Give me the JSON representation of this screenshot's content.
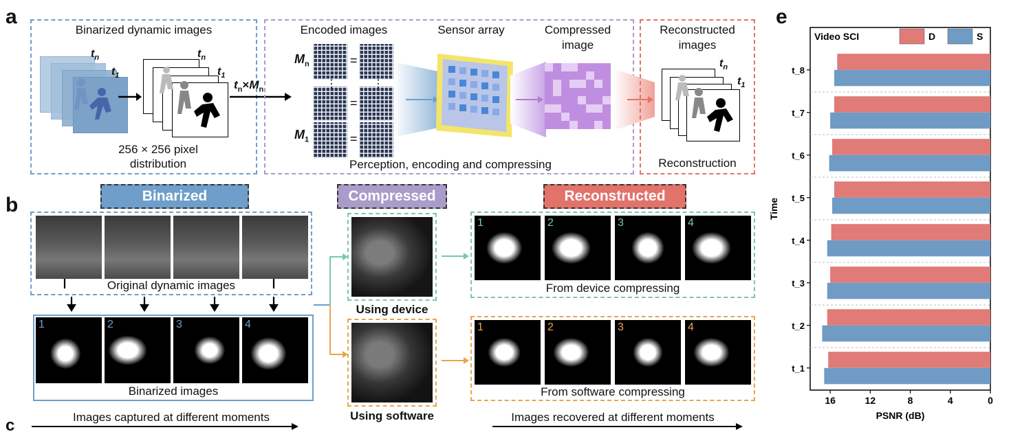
{
  "panel_a": {
    "letter": "a",
    "binarized_title": "Binarized dynamic images",
    "pixel_line1": "256 × 256 pixel",
    "pixel_line2": "distribution",
    "t_n": "t",
    "t_n_sub": "n",
    "t_1": "t",
    "t_1_sub": "1",
    "arrow_label_t": "t",
    "arrow_label_times": "×",
    "arrow_label_M": "M",
    "arrow_label_sub": "n",
    "encoded_title": "Encoded images",
    "sensor_title": "Sensor array",
    "compressed_title_1": "Compressed",
    "compressed_title_2": "image",
    "M_n": "M",
    "M_n_sub": "n",
    "M_1": "M",
    "M_1_sub": "1",
    "equals": "=",
    "vdots": "⋮",
    "perception_caption": "Perception, encoding and compressing",
    "recon_title_1": "Reconstructed",
    "recon_title_2": "images",
    "recon_caption": "Reconstruction"
  },
  "panel_b": {
    "letter": "b",
    "binarized_tag": "Binarized",
    "compressed_tag": "Compressed",
    "reconstructed_tag": "Reconstructed",
    "original_caption": "Original dynamic images",
    "binarized_caption": "Binarized images",
    "using_device": "Using device",
    "using_software": "Using software",
    "device_caption": "From device compressing",
    "software_caption": "From software compressing",
    "captured_caption": "Images captured at different moments",
    "recovered_caption": "Images recovered at different moments",
    "frame_numbers": [
      "1",
      "2",
      "3",
      "4"
    ]
  },
  "panel_c": {
    "letter": "c"
  },
  "colors": {
    "blue": "#6e9ec9",
    "purple": "#a99cc9",
    "red": "#e1736b",
    "teal": "#78c7b1",
    "orange": "#e8a54b",
    "bar_D": "#e07b78",
    "bar_S": "#6f9bc5"
  },
  "panel_e": {
    "letter": "e",
    "chart_data": {
      "type": "bar",
      "orientation": "horizontal",
      "title": "Video SCI",
      "categories": [
        "t_1",
        "t_2",
        "t_3",
        "t_4",
        "t_5",
        "t_6",
        "t_7",
        "t_8"
      ],
      "series": [
        {
          "name": "D",
          "values": [
            16.2,
            16.3,
            16.0,
            15.9,
            15.6,
            15.8,
            15.6,
            15.3
          ],
          "color": "#e07b78"
        },
        {
          "name": "S",
          "values": [
            16.6,
            16.8,
            16.3,
            16.3,
            15.8,
            16.1,
            16.0,
            15.6
          ],
          "color": "#6f9bc5"
        }
      ],
      "xlabel": "PSNR (dB)",
      "ylabel": "Time",
      "xlim": [
        18,
        0
      ],
      "xticks": [
        16,
        12,
        8,
        4,
        0
      ],
      "legend": "top",
      "grid": "horizontal dashed"
    }
  }
}
